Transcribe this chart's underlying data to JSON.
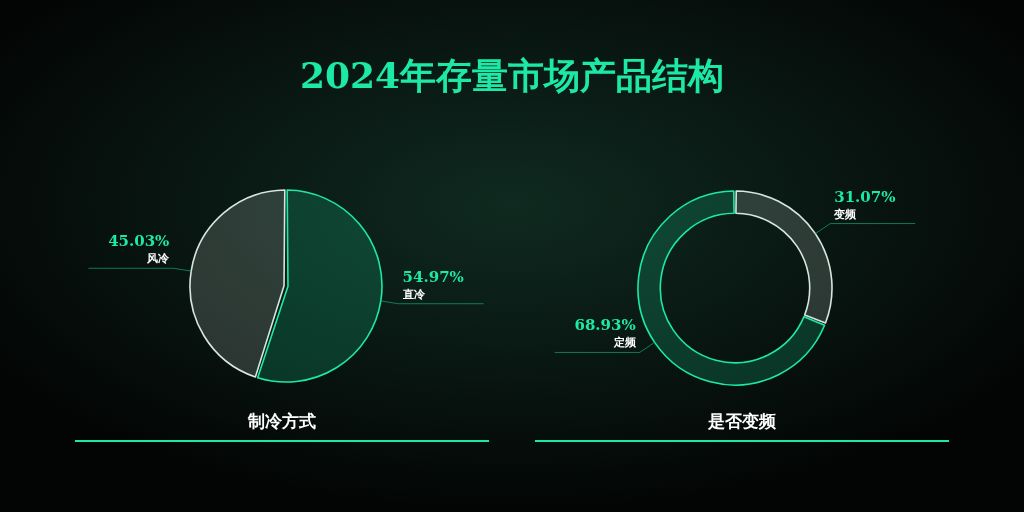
{
  "chart_data": [
    {
      "type": "pie",
      "title": "制冷方式",
      "annotations": [
        "2024年存量市场产品结构"
      ],
      "categories": [
        "直冷",
        "风冷"
      ],
      "values": [
        54.97,
        45.03
      ],
      "colors": [
        "#1de9a6",
        "#d6e6e0"
      ],
      "value_labels": [
        "54.97%",
        "45.03%"
      ]
    },
    {
      "type": "donut",
      "title": "是否变频",
      "categories": [
        "变频",
        "定频"
      ],
      "values": [
        31.07,
        68.93
      ],
      "colors": [
        "#d6e6e0",
        "#1de9a6"
      ],
      "value_labels": [
        "31.07%",
        "68.93%"
      ]
    }
  ]
}
